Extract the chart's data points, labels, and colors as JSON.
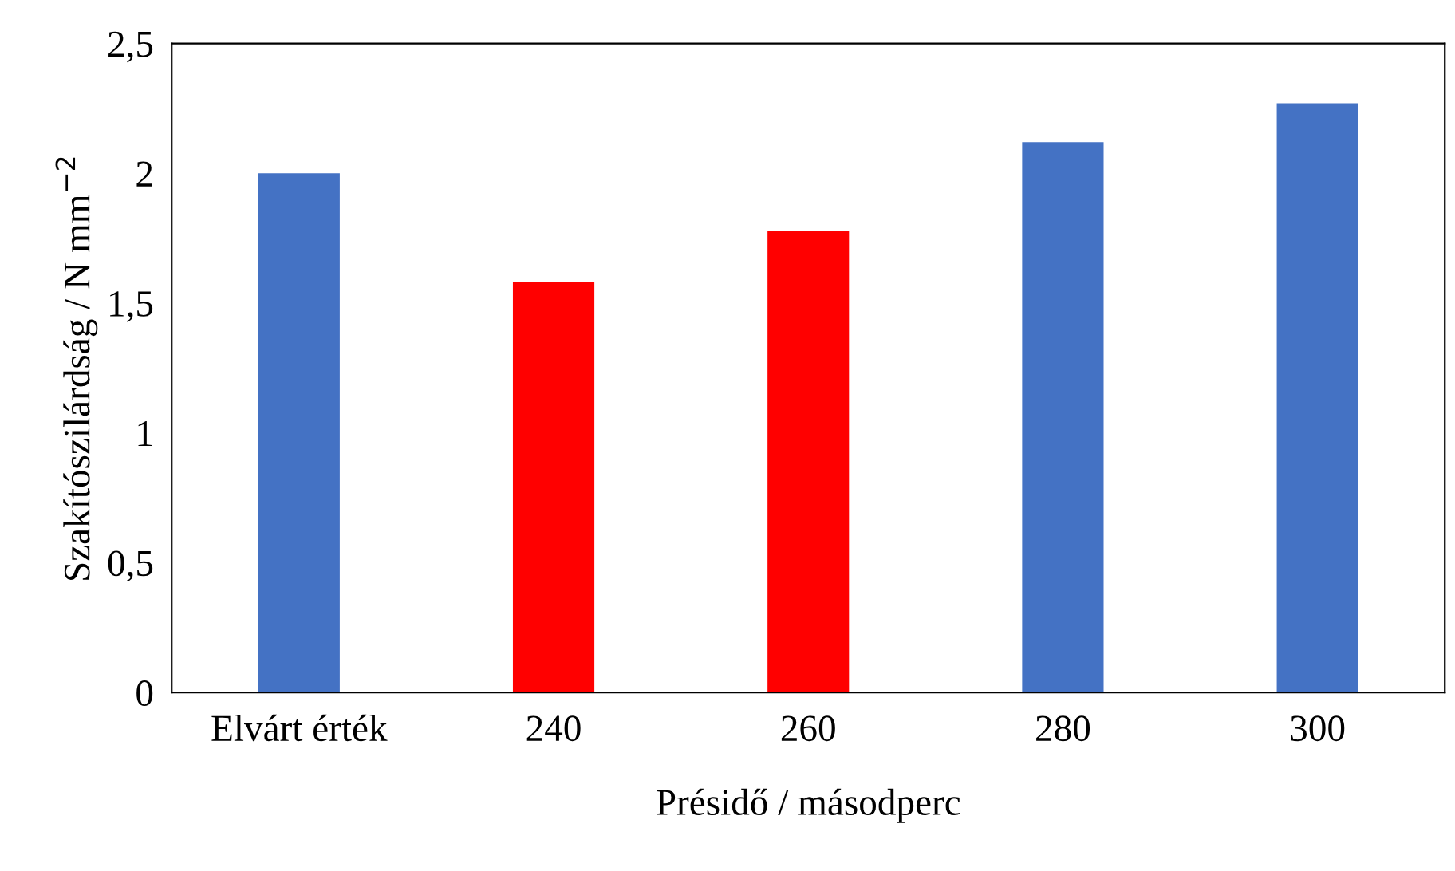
{
  "chart_data": {
    "type": "bar",
    "xlabel": "Présidő / másodperc",
    "ylabel": "Szakítószilárdság / N mm$^{−2}$",
    "categories": [
      "Elvárt érték",
      "240",
      "260",
      "280",
      "300"
    ],
    "values": [
      2.0,
      1.58,
      1.78,
      2.12,
      2.27
    ],
    "colors": [
      "#4472c4",
      "#ff0000",
      "#ff0000",
      "#4472c4",
      "#4472c4"
    ],
    "ylim": [
      0,
      2.5
    ],
    "yticks": [
      {
        "value": 0,
        "label": "0"
      },
      {
        "value": 0.5,
        "label": "0,5"
      },
      {
        "value": 1,
        "label": "1"
      },
      {
        "value": 1.5,
        "label": "1,5"
      },
      {
        "value": 2,
        "label": "2"
      },
      {
        "value": 2.5,
        "label": "2,5"
      }
    ],
    "grid": false,
    "legend": false
  }
}
